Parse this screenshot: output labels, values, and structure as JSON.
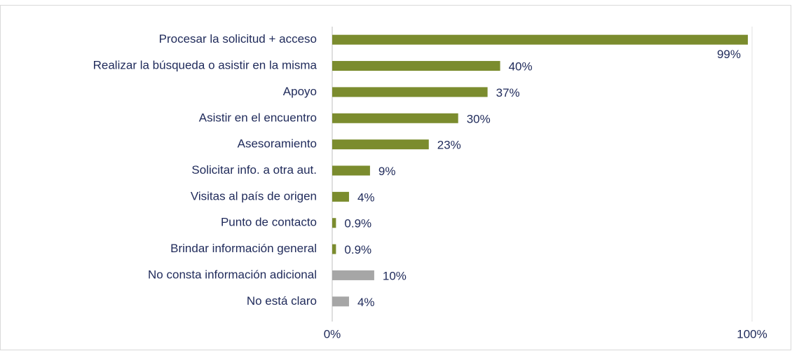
{
  "chart_data": {
    "type": "barh",
    "categories": [
      "Procesar la solicitud + acceso",
      "Realizar la búsqueda o asistir en la misma",
      "Apoyo",
      "Asistir en el encuentro",
      "Asesoramiento",
      "Solicitar info. a otra aut.",
      "Visitas al país de origen",
      "Punto de contacto",
      "Brindar información general",
      "No consta información adicional",
      "No está claro"
    ],
    "values": [
      99,
      40,
      37,
      30,
      23,
      9,
      4,
      0.9,
      0.9,
      10,
      4
    ],
    "value_labels": [
      "99%",
      "40%",
      "37%",
      "30%",
      "23%",
      "9%",
      "4%",
      "0.9%",
      "0.9%",
      "10%",
      "4%"
    ],
    "colors": [
      "#7b8c2e",
      "#7b8c2e",
      "#7b8c2e",
      "#7b8c2e",
      "#7b8c2e",
      "#7b8c2e",
      "#7b8c2e",
      "#7b8c2e",
      "#7b8c2e",
      "#a6a6a6",
      "#a6a6a6"
    ],
    "xlim": [
      0,
      100
    ],
    "xticks": [
      {
        "value": 0,
        "label": "0%"
      },
      {
        "value": 100,
        "label": "100%"
      }
    ],
    "grid": true
  }
}
